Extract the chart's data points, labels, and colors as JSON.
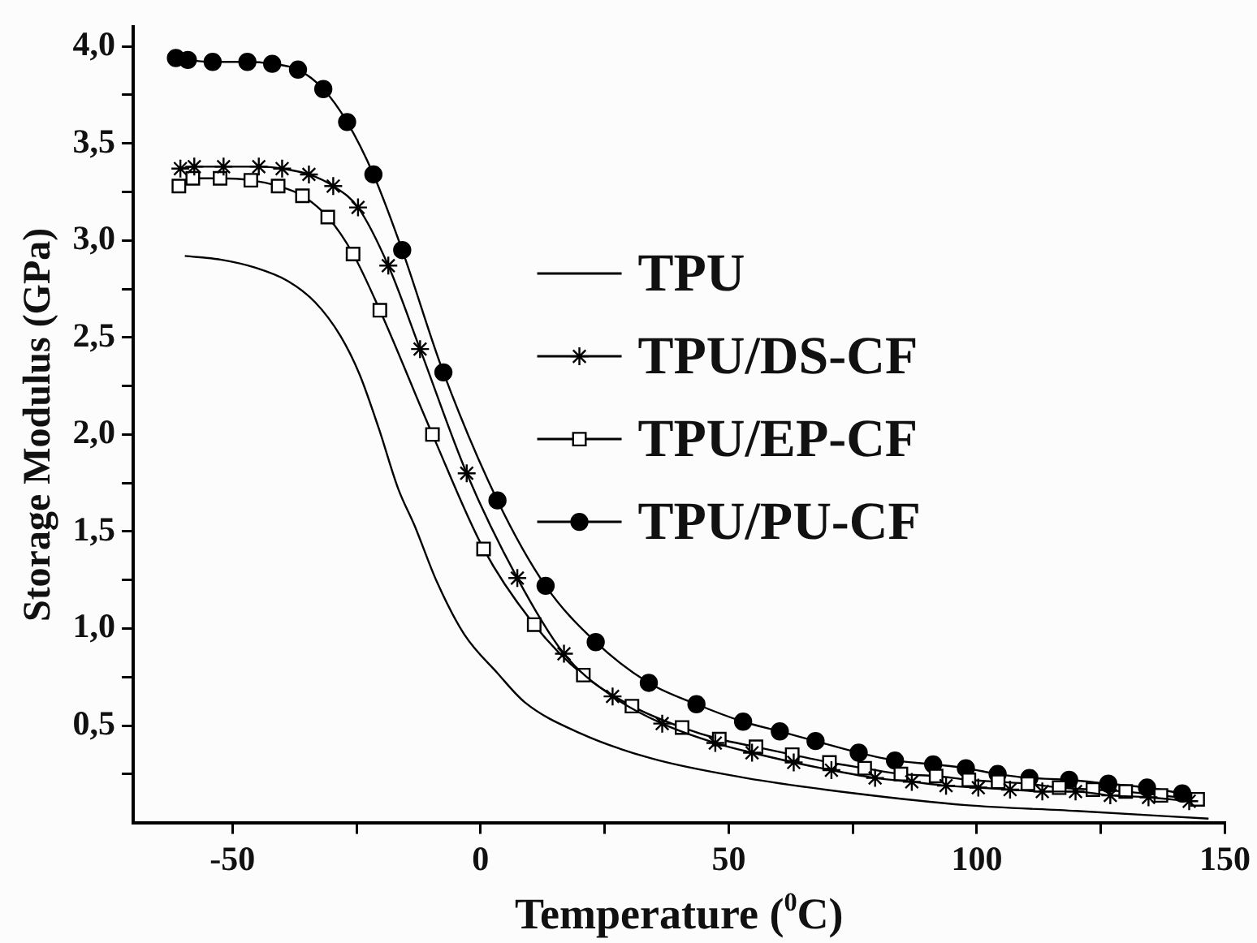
{
  "chart_data": {
    "type": "line",
    "xlabel": "Temperature ($^{0}$C)",
    "ylabel": "Storage Modulus (GPa)",
    "xlim": [
      -70,
      150
    ],
    "xticks": [
      -50,
      {
        "value": -25,
        "label": null
      },
      0,
      {
        "value": 25,
        "label": null
      },
      50,
      {
        "value": 75,
        "label": null
      },
      100,
      {
        "value": 125,
        "label": null
      },
      150
    ],
    "ylim": [
      0,
      4.1
    ],
    "yticks": [
      {
        "value": 0.25,
        "label": null
      },
      {
        "value": 0.5,
        "label": "0,5"
      },
      {
        "value": 0.75,
        "label": null
      },
      {
        "value": 1,
        "label": "1,0"
      },
      {
        "value": 1.25,
        "label": null
      },
      {
        "value": 1.5,
        "label": "1,5"
      },
      {
        "value": 1.75,
        "label": null
      },
      {
        "value": 2,
        "label": "2,0"
      },
      {
        "value": 2.25,
        "label": null
      },
      {
        "value": 2.5,
        "label": "2,5"
      },
      {
        "value": 2.75,
        "label": null
      },
      {
        "value": 3,
        "label": "3,0"
      },
      {
        "value": 3.25,
        "label": null
      },
      {
        "value": 3.5,
        "label": "3,5"
      },
      {
        "value": 3.75,
        "label": null
      },
      {
        "value": 4,
        "label": "4,0"
      }
    ],
    "legend": "right",
    "series": [
      {
        "name": "TPU",
        "color": "#000000",
        "marker": "none",
        "x": [
          -59.6,
          -52.2,
          -45.5,
          -38.8,
          -33.3,
          -28.3,
          -24.4,
          -20.5,
          -16.6,
          -13.3,
          -8.8,
          -3.3,
          3.4,
          8.9,
          20.1,
          34.5,
          53.4,
          75.6,
          97.8,
          120,
          146.7
        ],
        "values": [
          2.92,
          2.9,
          2.86,
          2.79,
          2.68,
          2.51,
          2.31,
          2.03,
          1.72,
          1.53,
          1.24,
          0.97,
          0.77,
          0.62,
          0.46,
          0.33,
          0.23,
          0.15,
          0.09,
          0.06,
          0.02
        ]
      },
      {
        "name": "TPU/DS-CF",
        "color": "#000000",
        "marker": "cross",
        "x": [
          -60.5,
          -57.7,
          -51.8,
          -44.7,
          -40,
          -34.6,
          -29.7,
          -24.7,
          -18.6,
          -12.2,
          -2.8,
          7.4,
          16.8,
          26.6,
          36.6,
          47.3,
          54.7,
          63.1,
          70.7,
          79.5,
          86.9,
          93.8,
          100.3,
          106.7,
          113.2,
          119.9,
          126.9,
          134.6,
          142.8
        ],
        "values": [
          3.37,
          3.38,
          3.38,
          3.38,
          3.37,
          3.34,
          3.28,
          3.17,
          2.87,
          2.44,
          1.8,
          1.26,
          0.87,
          0.65,
          0.51,
          0.41,
          0.36,
          0.31,
          0.27,
          0.23,
          0.21,
          0.19,
          0.18,
          0.17,
          0.16,
          0.16,
          0.14,
          0.13,
          0.11
        ]
      },
      {
        "name": "TPU/EP-CF",
        "color": "#000000",
        "marker": "square",
        "x": [
          -60.8,
          -58,
          -52.5,
          -46.3,
          -40.8,
          -35.9,
          -30.8,
          -25.7,
          -20.3,
          -9.7,
          0.6,
          10.8,
          20.7,
          30.5,
          40.6,
          48.1,
          55.5,
          62.8,
          70.3,
          77.4,
          84.7,
          91.8,
          98.4,
          104.3,
          110.3,
          116.6,
          123.4,
          130,
          137.1,
          144.5
        ],
        "values": [
          3.28,
          3.32,
          3.32,
          3.31,
          3.28,
          3.23,
          3.12,
          2.93,
          2.64,
          2,
          1.41,
          1.02,
          0.76,
          0.6,
          0.49,
          0.43,
          0.39,
          0.35,
          0.31,
          0.28,
          0.25,
          0.24,
          0.22,
          0.21,
          0.2,
          0.18,
          0.17,
          0.16,
          0.14,
          0.12
        ]
      },
      {
        "name": "TPU/PU-CF",
        "color": "#000000",
        "marker": "circle",
        "x": [
          -61.4,
          -59,
          -54,
          -47,
          -42,
          -36.8,
          -31.7,
          -26.9,
          -21.6,
          -15.8,
          -7.5,
          3.4,
          13.1,
          23.2,
          33.9,
          43.5,
          52.9,
          60.3,
          67.5,
          76.2,
          83.5,
          91.2,
          97.8,
          104.2,
          110.6,
          118.6,
          126.5,
          134.3,
          141.4
        ],
        "values": [
          3.94,
          3.93,
          3.92,
          3.92,
          3.91,
          3.88,
          3.78,
          3.61,
          3.34,
          2.95,
          2.32,
          1.66,
          1.22,
          0.93,
          0.72,
          0.61,
          0.52,
          0.47,
          0.42,
          0.36,
          0.32,
          0.3,
          0.28,
          0.25,
          0.23,
          0.22,
          0.2,
          0.18,
          0.15
        ]
      }
    ]
  }
}
